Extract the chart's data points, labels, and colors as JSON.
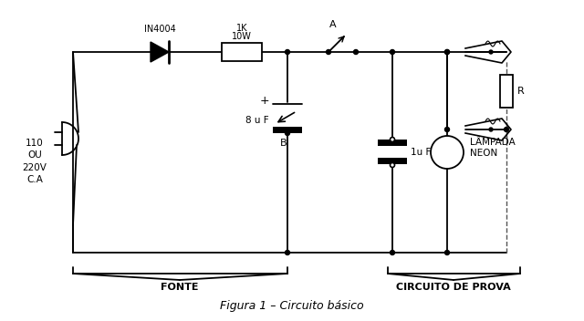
{
  "title": "Figura 1 – Circuito básico",
  "bg_color": "#ffffff",
  "line_color": "#000000",
  "label_fonte": "FONTE",
  "label_circuito": "CIRCUITO DE PROVA",
  "label_diode": "IN4004",
  "label_resistor_top": "10W",
  "label_resistor_bot": "1K",
  "label_cap1": "8 u F",
  "label_cap2": "1u F",
  "label_neon": "LÂMPADA\nNEON",
  "label_R": "R",
  "label_A": "A",
  "label_B": "B",
  "label_voltage": "110\nOU\n220V\nC.A",
  "label_plus": "+"
}
